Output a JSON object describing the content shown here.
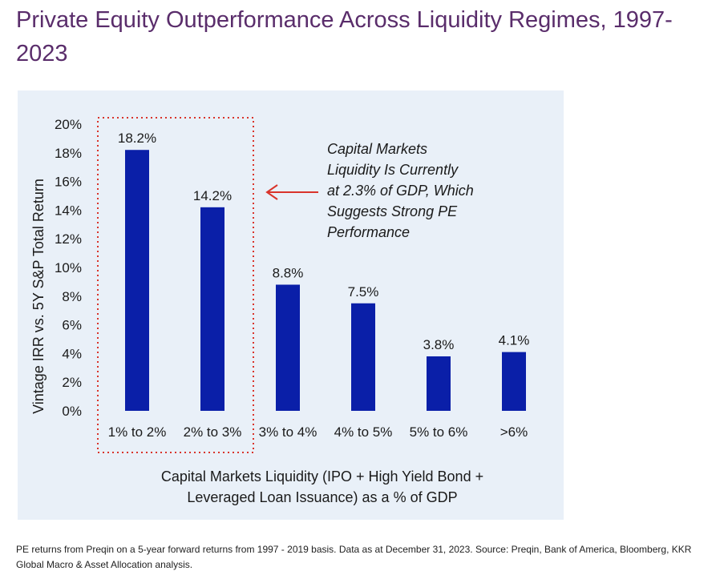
{
  "page": {
    "title": "Private Equity Outperformance Across Liquidity Regimes, 1997-2023",
    "footnote": "PE returns from Preqin on a 5-year forward returns from 1997 - 2019 basis. Data as at December 31, 2023. Source: Preqin, Bank of America, Bloomberg, KKR Global Macro & Asset Allocation analysis."
  },
  "colors": {
    "title": "#5a2d6b",
    "panel_background": "#e9f0f8",
    "bar": "#0a1fa8",
    "highlight_box": "#d9342b",
    "arrow": "#d9342b",
    "text": "#1a1a1a"
  },
  "chart_data": {
    "type": "bar",
    "categories": [
      "1% to 2%",
      "2% to 3%",
      "3% to 4%",
      "4% to 5%",
      "5% to 6%",
      ">6%"
    ],
    "values": [
      18.2,
      14.2,
      8.8,
      7.5,
      3.8,
      4.1
    ],
    "value_labels": [
      "18.2%",
      "14.2%",
      "8.8%",
      "7.5%",
      "3.8%",
      "4.1%"
    ],
    "ylim": [
      0,
      20
    ],
    "y_ticks": [
      "0%",
      "2%",
      "4%",
      "6%",
      "8%",
      "10%",
      "12%",
      "14%",
      "16%",
      "18%",
      "20%"
    ],
    "ylabel": "Vintage IRR vs. 5Y S&P Total Return",
    "xlabel_lines": [
      "Capital Markets Liquidity (IPO + High Yield Bond +",
      "Leveraged Loan Issuance) as a % of GDP"
    ],
    "annotation_lines": [
      "Capital Markets",
      "Liquidity Is Currently",
      "at 2.3% of GDP, Which",
      "Suggests Strong PE",
      "Performance"
    ],
    "highlighted_categories": [
      "1% to 2%",
      "2% to 3%"
    ],
    "grid": false
  }
}
